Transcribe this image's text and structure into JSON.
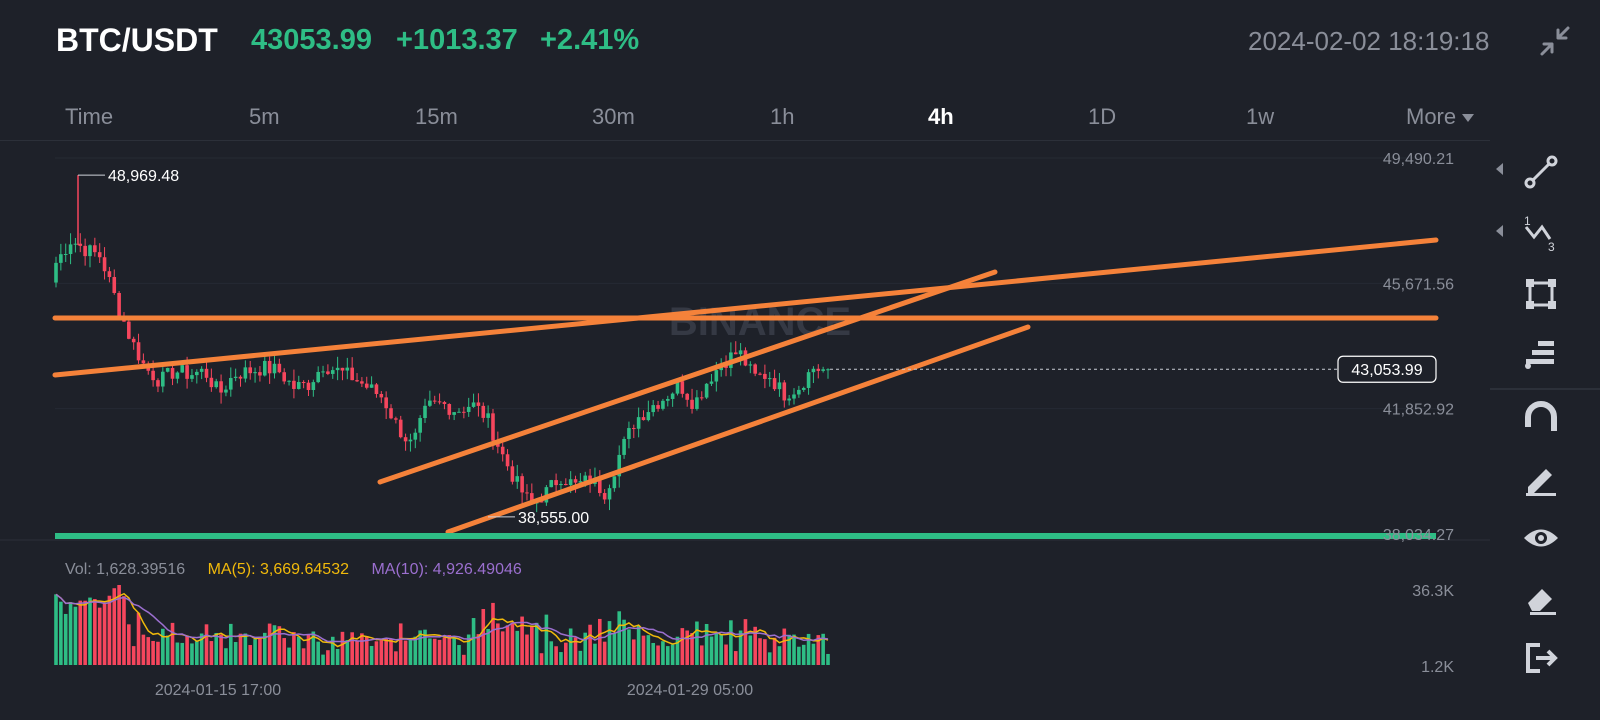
{
  "header": {
    "pair": "BTC/USDT",
    "price": "43053.99",
    "change": "+1013.37",
    "change_pct": "+2.41%",
    "datetime": "2024-02-02 18:19:18"
  },
  "tabs": [
    {
      "label": "Time",
      "active": false
    },
    {
      "label": "5m",
      "active": false
    },
    {
      "label": "15m",
      "active": false
    },
    {
      "label": "30m",
      "active": false
    },
    {
      "label": "1h",
      "active": false
    },
    {
      "label": "4h",
      "active": true
    },
    {
      "label": "1D",
      "active": false
    },
    {
      "label": "1w",
      "active": false
    },
    {
      "label": "More",
      "active": false
    }
  ],
  "volume_legend": {
    "vol": "Vol: 1,628.39516",
    "ma5": "MA(5): 3,669.64532",
    "ma10": "MA(10): 4,926.49046"
  },
  "toolbar": {
    "icons": [
      "trendline-icon",
      "fib-icon",
      "rectangle-icon",
      "text-lines-icon",
      "magnet-icon",
      "pencil-icon",
      "eye-icon",
      "eraser-icon",
      "exit-icon"
    ]
  },
  "colors": {
    "up": "#2ebd85",
    "down": "#f6465d",
    "drawing": "#f5823a",
    "support": "#2ebd85",
    "background": "#1e2129"
  },
  "chart_data": {
    "type": "candlestick",
    "price_ticks": [
      "49,490.21",
      "45,671.56",
      "41,852.92",
      "38,034.27"
    ],
    "price_tick_values": [
      49490.21,
      45671.56,
      41852.92,
      38034.27
    ],
    "last_price_label": "43,053.99",
    "last_price": 43053.99,
    "high_marker": {
      "label": "48,969.48",
      "value": 48969.48
    },
    "low_marker": {
      "label": "38,555.00",
      "value": 38555.0
    },
    "volume_ticks": [
      "36.3K",
      "1.2K"
    ],
    "volume_tick_values": [
      36300,
      1200
    ],
    "x_labels": [
      "2024-01-15 17:00",
      "2024-01-29 05:00"
    ],
    "watermark": "BINANCE",
    "close_path": [
      46300,
      47000,
      46700,
      46500,
      45200,
      44000,
      43100,
      42700,
      43000,
      42900,
      43000,
      42300,
      42900,
      43000,
      43100,
      43000,
      42500,
      42600,
      43200,
      43000,
      42800,
      42500,
      42200,
      41300,
      40700,
      41900,
      42000,
      41800,
      42000,
      41600,
      40500,
      39600,
      38900,
      39300,
      39800,
      39500,
      39700,
      39300,
      40500,
      41500,
      41900,
      42200,
      42600,
      42000,
      42800,
      43300,
      43600,
      42800,
      42900,
      42300,
      42500,
      43100,
      43000
    ]
  }
}
